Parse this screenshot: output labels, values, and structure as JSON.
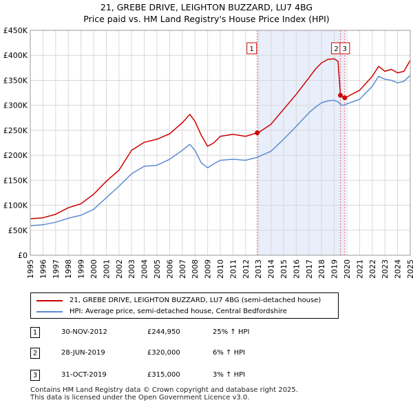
{
  "title": "21, GREBE DRIVE, LEIGHTON BUZZARD, LU7 4BG",
  "subtitle": "Price paid vs. HM Land Registry's House Price Index (HPI)",
  "colors": {
    "property": "#cc0000",
    "hpi": "#5b8bd0",
    "shade": "#e8eefa",
    "vline": "#e06070"
  },
  "chart_data": {
    "type": "line",
    "x_ticks": [
      "1995",
      "1996",
      "1997",
      "1998",
      "1999",
      "2000",
      "2001",
      "2002",
      "2003",
      "2004",
      "2005",
      "2006",
      "2007",
      "2008",
      "2009",
      "2010",
      "2011",
      "2012",
      "2013",
      "2014",
      "2015",
      "2016",
      "2017",
      "2018",
      "2019",
      "2020",
      "2021",
      "2022",
      "2023",
      "2024",
      "2025"
    ],
    "y_ticks": [
      "£0",
      "£50K",
      "£100K",
      "£150K",
      "£200K",
      "£250K",
      "£300K",
      "£350K",
      "£400K",
      "£450K"
    ],
    "xlim": [
      1995,
      2025
    ],
    "ylim": [
      0,
      450000
    ],
    "shaded_range": [
      2012.92,
      2019.83
    ],
    "sale_markers": [
      {
        "label": "1",
        "x": 2012.92,
        "y": 244950
      },
      {
        "label": "2",
        "x": 2019.49,
        "y": 320000
      },
      {
        "label": "3",
        "x": 2019.83,
        "y": 315000
      }
    ],
    "series": [
      {
        "name": "21, GREBE DRIVE, LEIGHTON BUZZARD, LU7 4BG (semi-detached house)",
        "color": "#cc0000",
        "x": [
          1995,
          1996,
          1997,
          1998,
          1999,
          2000,
          2001,
          2002,
          2003,
          2004,
          2005,
          2006,
          2007,
          2007.6,
          2008,
          2008.5,
          2009,
          2009.5,
          2010,
          2011,
          2012,
          2012.92,
          2013,
          2014,
          2015,
          2016,
          2017,
          2017.5,
          2018,
          2018.5,
          2019,
          2019.3,
          2019.49,
          2019.6,
          2019.83,
          2020,
          2021,
          2022,
          2022.5,
          2023,
          2023.5,
          2024,
          2024.5,
          2025
        ],
        "y": [
          73000,
          75000,
          82000,
          95000,
          103000,
          122000,
          148000,
          170000,
          210000,
          226000,
          232000,
          243000,
          265000,
          282000,
          268000,
          240000,
          218000,
          225000,
          238000,
          242000,
          238000,
          244950,
          245000,
          262000,
          292000,
          322000,
          355000,
          372000,
          385000,
          392000,
          393000,
          388000,
          320000,
          318000,
          315000,
          317000,
          330000,
          358000,
          378000,
          368000,
          372000,
          365000,
          368000,
          390000
        ]
      },
      {
        "name": "HPI: Average price, semi-detached house, Central Bedfordshire",
        "color": "#5b8bd0",
        "x": [
          1995,
          1996,
          1997,
          1998,
          1999,
          2000,
          2001,
          2002,
          2003,
          2004,
          2005,
          2006,
          2007,
          2007.6,
          2008,
          2008.5,
          2009,
          2009.5,
          2010,
          2011,
          2012,
          2012.92,
          2013,
          2014,
          2015,
          2016,
          2017,
          2017.5,
          2018,
          2018.5,
          2019,
          2019.3,
          2019.49,
          2019.6,
          2019.83,
          2020,
          2021,
          2022,
          2022.5,
          2023,
          2023.5,
          2024,
          2024.5,
          2025
        ],
        "y": [
          59000,
          61000,
          66000,
          74000,
          80000,
          92000,
          115000,
          138000,
          163000,
          178000,
          180000,
          192000,
          210000,
          222000,
          210000,
          185000,
          175000,
          183000,
          190000,
          192000,
          190000,
          196000,
          197000,
          208000,
          232000,
          258000,
          285000,
          296000,
          305000,
          309000,
          310000,
          307000,
          302000,
          300000,
          301000,
          303000,
          312000,
          338000,
          358000,
          352000,
          350000,
          345000,
          348000,
          360000
        ]
      }
    ]
  },
  "legend": [
    {
      "label": "21, GREBE DRIVE, LEIGHTON BUZZARD, LU7 4BG (semi-detached house)"
    },
    {
      "label": "HPI: Average price, semi-detached house, Central Bedfordshire"
    }
  ],
  "sales": [
    {
      "num": "1",
      "date": "30-NOV-2012",
      "price": "£244,950",
      "hpi": "25% ↑ HPI"
    },
    {
      "num": "2",
      "date": "28-JUN-2019",
      "price": "£320,000",
      "hpi": "6% ↑ HPI"
    },
    {
      "num": "3",
      "date": "31-OCT-2019",
      "price": "£315,000",
      "hpi": "3% ↑ HPI"
    }
  ],
  "footer": {
    "line1": "Contains HM Land Registry data © Crown copyright and database right 2025.",
    "line2": "This data is licensed under the Open Government Licence v3.0."
  }
}
